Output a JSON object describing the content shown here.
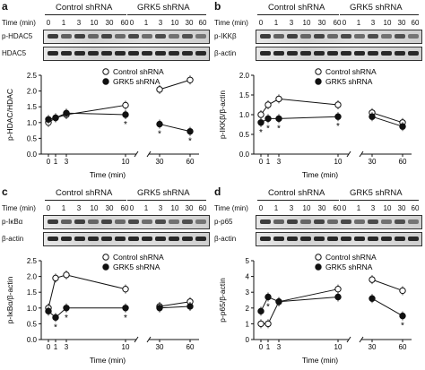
{
  "headers": {
    "group1": "Control shRNA",
    "group2": "GRK5 shRNA",
    "time": "Time (min)"
  },
  "time_ticks": [
    "0",
    "1",
    "3",
    "10",
    "30",
    "60"
  ],
  "panels": [
    {
      "letter": "a",
      "blots": [
        "p-HDAC5",
        "HDAC5"
      ],
      "legend": [
        "Control shRNA",
        "GRK5 shRNA"
      ],
      "chart_data": {
        "type": "line",
        "ylabel": "p-HDAC/HDAC",
        "xlabel": "Time (min)",
        "x": [
          0,
          1,
          3,
          10,
          30,
          60
        ],
        "xticks": [
          "0",
          "1",
          "3",
          "10",
          "30",
          "60"
        ],
        "yticks": [
          "0.0",
          "0.5",
          "1.0",
          "1.5",
          "2.0",
          "2.5"
        ],
        "ylim": [
          0,
          2.5
        ],
        "series": [
          {
            "name": "Control shRNA",
            "marker": "open",
            "values": [
              1.0,
              1.15,
              1.25,
              1.55,
              2.05,
              2.35
            ]
          },
          {
            "name": "GRK5 shRNA",
            "marker": "filled",
            "values": [
              1.1,
              1.15,
              1.3,
              1.25,
              0.95,
              0.72
            ]
          }
        ],
        "significance": [
          10,
          30,
          60
        ]
      }
    },
    {
      "letter": "b",
      "blots": [
        "p-IKKβ",
        "β-actin"
      ],
      "legend": [
        "Control shRNA",
        "GRK5 shRNA"
      ],
      "chart_data": {
        "type": "line",
        "ylabel": "p-IKKβ/β-actin",
        "xlabel": "Time (min)",
        "x": [
          0,
          1,
          3,
          10,
          30,
          60
        ],
        "xticks": [
          "0",
          "1",
          "3",
          "10",
          "30",
          "60"
        ],
        "yticks": [
          "0.0",
          "0.5",
          "1.0",
          "1.5",
          "2.0"
        ],
        "ylim": [
          0,
          2.0
        ],
        "series": [
          {
            "name": "Control shRNA",
            "marker": "open",
            "values": [
              1.0,
              1.25,
              1.4,
              1.25,
              1.05,
              0.8
            ]
          },
          {
            "name": "GRK5 shRNA",
            "marker": "filled",
            "values": [
              0.8,
              0.9,
              0.9,
              0.95,
              0.95,
              0.7
            ]
          }
        ],
        "significance": [
          0,
          1,
          3,
          10
        ]
      }
    },
    {
      "letter": "c",
      "blots": [
        "p-IκBα",
        "β-actin"
      ],
      "legend": [
        "Control shRNA",
        "GRK5 shRNA"
      ],
      "chart_data": {
        "type": "line",
        "ylabel": "p-IκBα/β-actin",
        "xlabel": "Time (min)",
        "x": [
          0,
          1,
          3,
          10,
          30,
          60
        ],
        "xticks": [
          "0",
          "1",
          "3",
          "10",
          "30",
          "60"
        ],
        "yticks": [
          "0.0",
          "0.5",
          "1.0",
          "1.5",
          "2.0",
          "2.5"
        ],
        "ylim": [
          0,
          2.5
        ],
        "series": [
          {
            "name": "Control shRNA",
            "marker": "open",
            "values": [
              1.0,
              1.95,
              2.05,
              1.6,
              1.05,
              1.2
            ]
          },
          {
            "name": "GRK5 shRNA",
            "marker": "filled",
            "values": [
              0.9,
              0.7,
              1.0,
              1.0,
              1.0,
              1.05
            ]
          }
        ],
        "significance": [
          1,
          3,
          10
        ]
      }
    },
    {
      "letter": "d",
      "blots": [
        "p-p65",
        "β-actin"
      ],
      "legend": [
        "Control shRNA",
        "GRK5 shRNA"
      ],
      "chart_data": {
        "type": "line",
        "ylabel": "p-p65/β-actin",
        "xlabel": "Time (min)",
        "x": [
          0,
          1,
          3,
          10,
          30,
          60
        ],
        "xticks": [
          "0",
          "1",
          "3",
          "10",
          "30",
          "60"
        ],
        "yticks": [
          "0",
          "1",
          "2",
          "3",
          "4",
          "5"
        ],
        "ylim": [
          0,
          5
        ],
        "series": [
          {
            "name": "Control shRNA",
            "marker": "open",
            "values": [
              1.0,
              1.0,
              2.4,
              3.2,
              3.8,
              3.1
            ]
          },
          {
            "name": "GRK5 shRNA",
            "marker": "filled",
            "values": [
              1.8,
              2.7,
              2.4,
              2.7,
              2.6,
              1.5
            ]
          }
        ],
        "significance": [
          1,
          60
        ]
      }
    }
  ]
}
